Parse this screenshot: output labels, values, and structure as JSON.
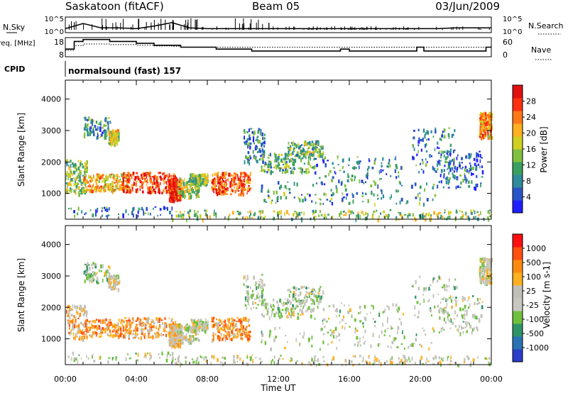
{
  "header": {
    "station": "Saskatoon (fitACF)",
    "beam": "Beam 05",
    "date": "03/Jun/2009"
  },
  "chart_data": [
    {
      "type": "line",
      "panel": "noise",
      "left_label": "N.Sky",
      "right_label": "N.Search",
      "left_ticks": [
        "10^5",
        "10^0"
      ],
      "right_ticks": [
        "10^5",
        "10^0"
      ],
      "x": [
        "00:00",
        "01:00",
        "02:00",
        "03:00",
        "04:00",
        "05:00",
        "06:00",
        "07:00",
        "08:00",
        "09:00",
        "10:00",
        "11:00",
        "12:00",
        "13:00",
        "14:00",
        "15:00",
        "16:00",
        "17:00",
        "18:00",
        "19:00",
        "20:00",
        "21:00",
        "22:00",
        "23:00",
        "24:00"
      ],
      "series": [
        {
          "name": "N.Sky",
          "values": [
            0.3,
            0.9,
            0.4,
            0.4,
            0.3,
            0.6,
            1.0,
            0.4,
            0.3,
            0.3,
            0.3,
            0.3,
            0.3,
            0.3,
            0.3,
            0.3,
            0.3,
            0.3,
            0.3,
            0.3,
            0.3,
            0.3,
            0.4,
            0.4,
            0.4
          ]
        }
      ]
    },
    {
      "type": "line",
      "panel": "frequency",
      "left_label": "Freq. [MHz]",
      "right_label": "Nave",
      "left_ticks": [
        "18",
        "8"
      ],
      "right_ticks": [
        "60",
        "0"
      ],
      "x": [
        0.0,
        0.5,
        1.0,
        1.5,
        2.5,
        4.0,
        5.0,
        6.0,
        6.5,
        7.5,
        8.5,
        9.5,
        10.5,
        11.5,
        12.5,
        13.5,
        14.5,
        15.5,
        16.0,
        17.5,
        19.0,
        19.8,
        20.2,
        21.5,
        22.5,
        23.7,
        24.0
      ],
      "series": [
        {
          "name": "Freq.",
          "values": [
            12,
            16,
            17,
            17,
            16,
            15,
            14,
            14,
            13,
            13,
            12,
            12,
            11,
            11,
            11,
            11,
            11,
            12,
            11,
            11,
            11,
            13,
            11,
            11,
            11,
            13,
            13
          ]
        },
        {
          "name": "Nave",
          "values": [
            20,
            35,
            40,
            40,
            38,
            36,
            34,
            33,
            30,
            30,
            30,
            30,
            30,
            30,
            30,
            30,
            30,
            30,
            30,
            30,
            30,
            30,
            30,
            30,
            30,
            30,
            30
          ]
        }
      ]
    },
    {
      "type": "heatmap",
      "panel": "power",
      "title": "normalsound (fast) 157",
      "cpid_label": "CPID",
      "ylabel": "Slant Range [km]",
      "xlim": [
        0,
        24
      ],
      "ylim": [
        180,
        4600
      ],
      "yticks": [
        1000,
        2000,
        3000,
        4000
      ],
      "colorbar": {
        "label": "Power [dB]",
        "ticks": [
          "4",
          "8",
          "12",
          "16",
          "20",
          "24",
          "28"
        ],
        "colors": [
          "#2020ff",
          "#2a55c8",
          "#2f8a9a",
          "#3aa060",
          "#80c040",
          "#d0d020",
          "#ffb020",
          "#ff7818",
          "#ff3010",
          "#e01010"
        ]
      }
    },
    {
      "type": "heatmap",
      "panel": "velocity",
      "ylabel": "Slant Range [km]",
      "xlabel": "Time UT",
      "xlim": [
        0,
        24
      ],
      "ylim": [
        180,
        4600
      ],
      "xticks": [
        "00:00",
        "04:00",
        "08:00",
        "12:00",
        "16:00",
        "20:00",
        "00:00"
      ],
      "yticks": [
        1000,
        2000,
        3000,
        4000
      ],
      "colorbar": {
        "label": "Velocity [m s-1]",
        "ticks": [
          "1000",
          "500",
          "100",
          "25",
          "-25",
          "-100",
          "-500",
          "-1000"
        ],
        "colors": [
          "#2a3cc8",
          "#2a72b4",
          "#2f9468",
          "#70c040",
          "#c8c8c0",
          "#c0c0b8",
          "#ffb020",
          "#ff8a10",
          "#ff5010",
          "#ff1010"
        ]
      }
    }
  ]
}
